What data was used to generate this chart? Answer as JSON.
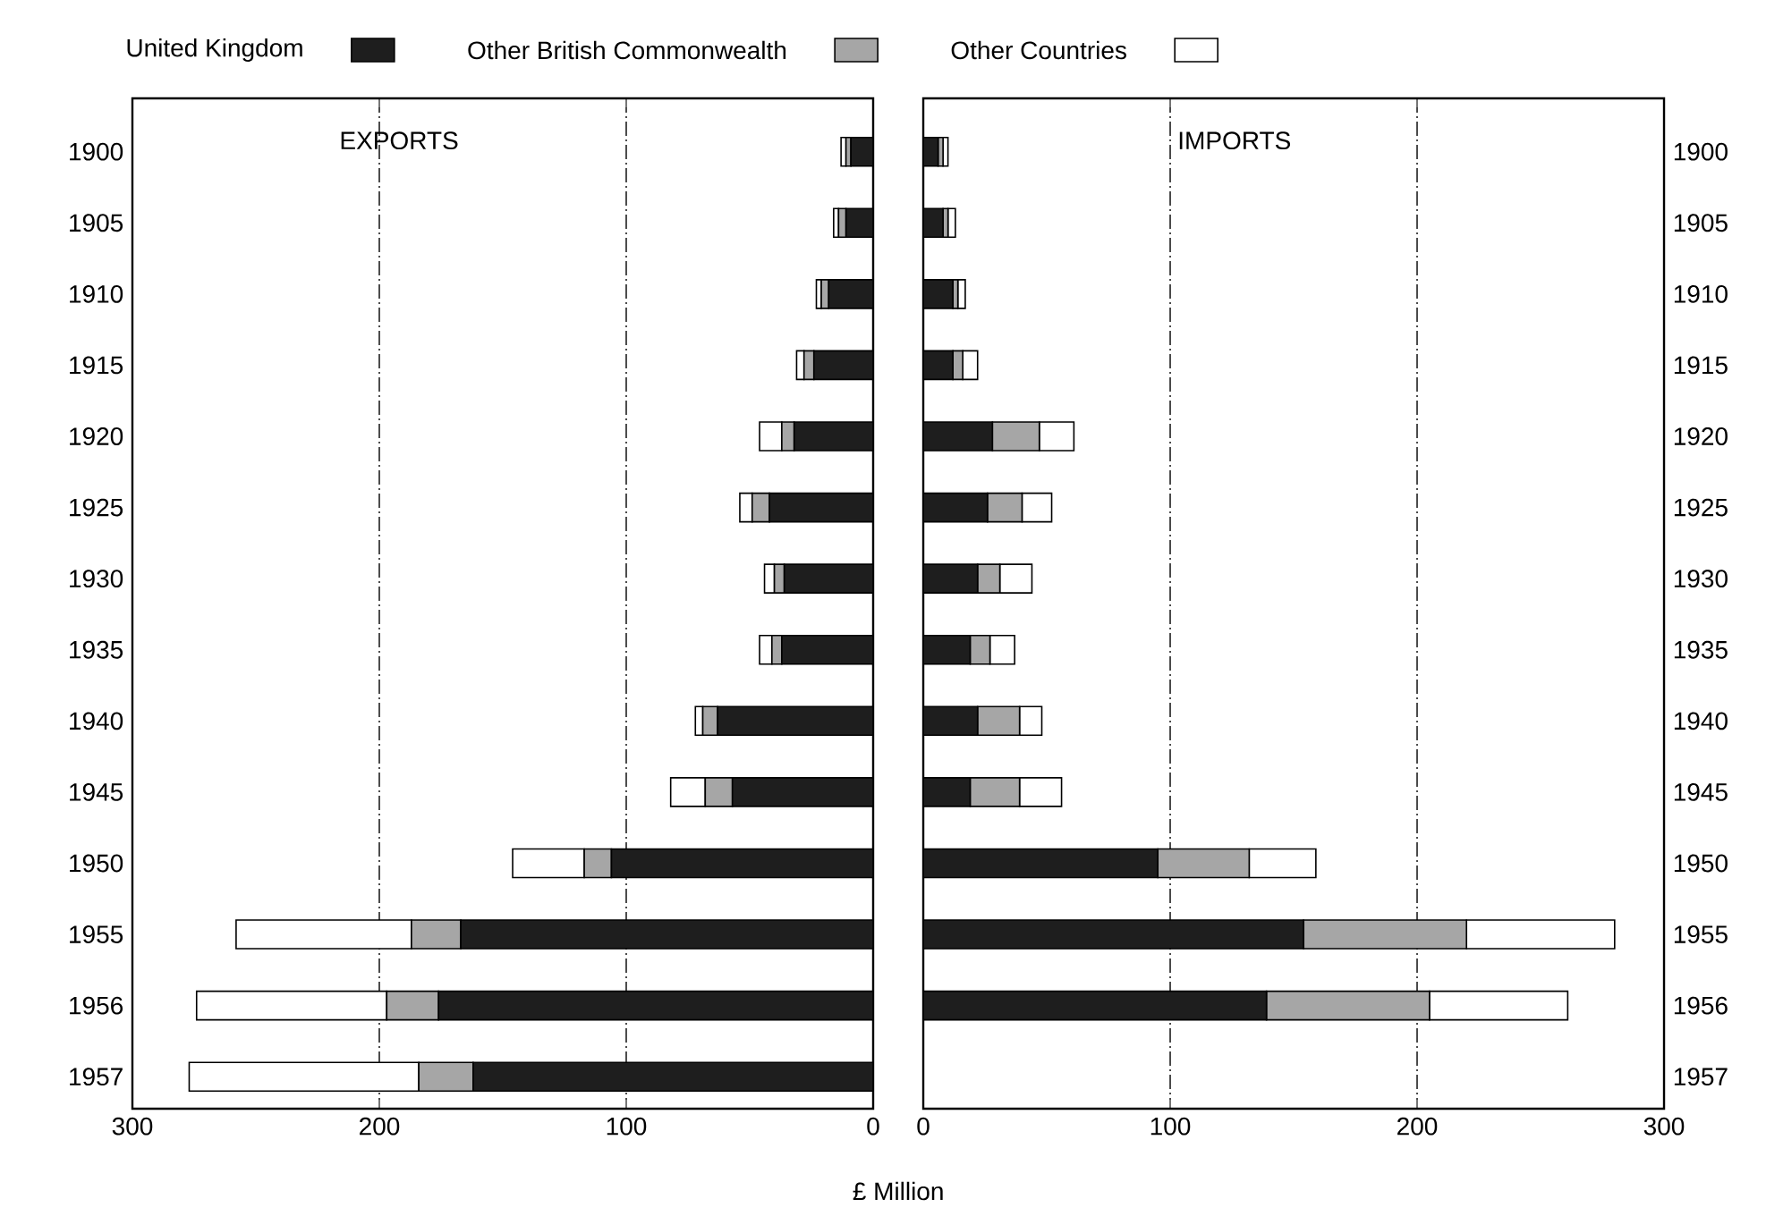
{
  "chart_data": [
    {
      "type": "bar",
      "orientation": "horizontal",
      "stacked": true,
      "title": "EXPORTS",
      "xlabel": "£ Million",
      "categories": [
        "1900",
        "1905",
        "1910",
        "1915",
        "1920",
        "1925",
        "1930",
        "1935",
        "1940",
        "1945",
        "1950",
        "1955",
        "1956",
        "1957"
      ],
      "series": [
        {
          "name": "United Kingdom",
          "color": "#1e1e1e",
          "values": [
            9,
            11,
            18,
            24,
            32,
            42,
            36,
            37,
            63,
            57,
            106,
            167,
            176,
            162
          ]
        },
        {
          "name": "Other British Commonwealth",
          "color": "#a6a6a6",
          "values": [
            2,
            3,
            3,
            4,
            5,
            7,
            4,
            4,
            6,
            11,
            11,
            20,
            21,
            22
          ]
        },
        {
          "name": "Other Countries",
          "color": "#ffffff",
          "values": [
            2,
            2,
            2,
            3,
            9,
            5,
            4,
            5,
            3,
            14,
            29,
            71,
            77,
            93
          ]
        }
      ],
      "xlim": [
        300,
        0
      ],
      "xticks": [
        300,
        200,
        100,
        0
      ],
      "grid": "x",
      "legend": "top"
    },
    {
      "type": "bar",
      "orientation": "horizontal",
      "stacked": true,
      "title": "IMPORTS",
      "categories": [
        "1900",
        "1905",
        "1910",
        "1915",
        "1920",
        "1925",
        "1930",
        "1935",
        "1940",
        "1945",
        "1950",
        "1955",
        "1956",
        "1957"
      ],
      "series": [
        {
          "color": "#1e1e1e",
          "values": [
            6,
            8,
            12,
            12,
            28,
            26,
            22,
            19,
            22,
            19,
            95,
            154,
            139,
            null
          ]
        },
        {
          "color": "#a6a6a6",
          "values": [
            2,
            2,
            2,
            4,
            19,
            14,
            9,
            8,
            17,
            20,
            37,
            66,
            66,
            null
          ]
        },
        {
          "color": "#ffffff",
          "values": [
            2,
            3,
            3,
            6,
            14,
            12,
            13,
            10,
            9,
            17,
            27,
            60,
            56,
            null
          ]
        }
      ],
      "xlim": [
        0,
        300
      ],
      "xticks": [
        0,
        100,
        200,
        300
      ],
      "grid": "x"
    }
  ]
}
